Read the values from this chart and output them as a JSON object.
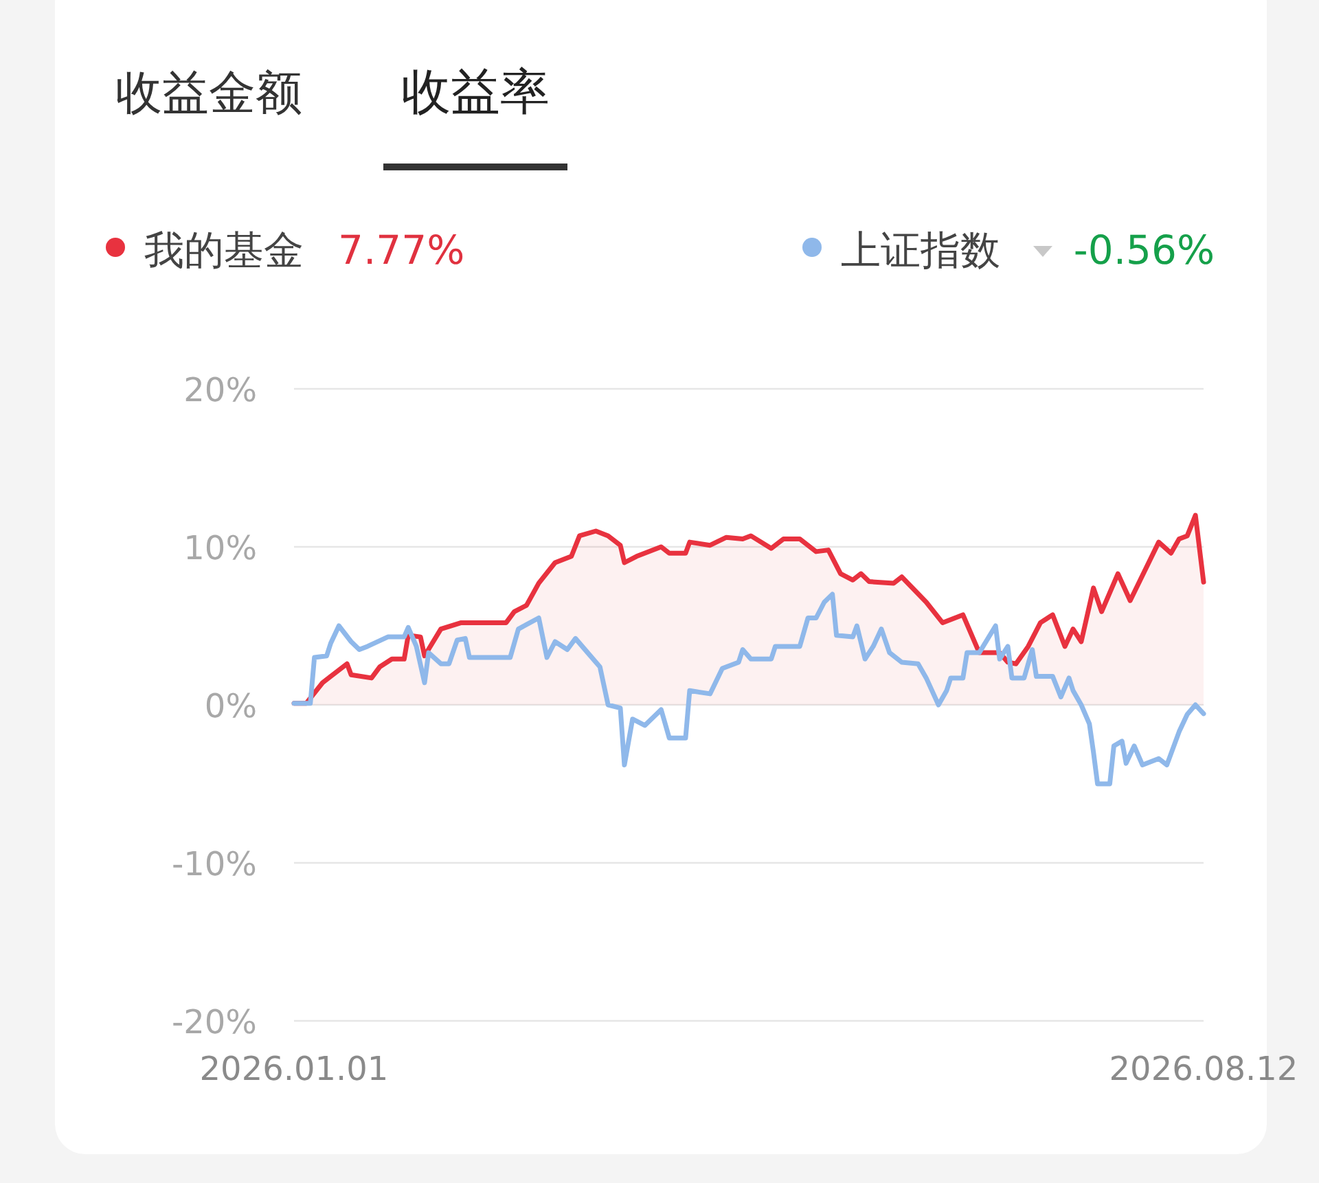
{
  "chart_data": {
    "type": "line",
    "annotations": [
      "收益金额",
      "收益率",
      "7.77%",
      "-0.56%"
    ],
    "xlim": [
      "2026-01-01",
      "2026-08-12"
    ],
    "xticks": [
      {
        "value": "2026-01-01",
        "label": "2026.01.01"
      },
      {
        "value": "2026-08-12",
        "label": "2026.08.12"
      }
    ],
    "ylim": [
      -20,
      20
    ],
    "yticks": [
      {
        "value": -20,
        "label": "-20%"
      },
      {
        "value": -10,
        "label": "-10%"
      },
      {
        "value": 0,
        "label": "0%"
      },
      {
        "value": 10,
        "label": "10%"
      },
      {
        "value": 20,
        "label": "20%"
      }
    ],
    "grid": "y",
    "legend": "top",
    "marker": "none",
    "line_style": "solid",
    "series": [
      {
        "name": "我的基金",
        "type": "area",
        "color": "#e8323f",
        "x": [
          "2026-01-01",
          "2026-01-04",
          "2026-01-08",
          "2026-01-10",
          "2026-01-14",
          "2026-01-15",
          "2026-01-20",
          "2026-01-22",
          "2026-01-25",
          "2026-01-28",
          "2026-01-29",
          "2026-02-01",
          "2026-02-02",
          "2026-02-06",
          "2026-02-11",
          "2026-02-22",
          "2026-02-24",
          "2026-02-27",
          "2026-03-02",
          "2026-03-06",
          "2026-03-10",
          "2026-03-12",
          "2026-03-16",
          "2026-03-19",
          "2026-03-22",
          "2026-03-23",
          "2026-03-26",
          "2026-04-01",
          "2026-04-03",
          "2026-04-07",
          "2026-04-08",
          "2026-04-13",
          "2026-04-17",
          "2026-04-21",
          "2026-04-23",
          "2026-04-28",
          "2026-05-01",
          "2026-05-05",
          "2026-05-09",
          "2026-05-12",
          "2026-05-15",
          "2026-05-18",
          "2026-05-20",
          "2026-05-22",
          "2026-05-28",
          "2026-05-30",
          "2026-06-05",
          "2026-06-09",
          "2026-06-14",
          "2026-06-18",
          "2026-06-23",
          "2026-06-25",
          "2026-06-27",
          "2026-06-30",
          "2026-07-03",
          "2026-07-06",
          "2026-07-09",
          "2026-07-11",
          "2026-07-13",
          "2026-07-16",
          "2026-07-18",
          "2026-07-22",
          "2026-07-25",
          "2026-08-01",
          "2026-08-04",
          "2026-08-06",
          "2026-08-08",
          "2026-08-10",
          "2026-08-12"
        ],
        "values": [
          0.1,
          0.1,
          1.4,
          1.8,
          2.6,
          1.9,
          1.7,
          2.4,
          2.9,
          2.9,
          4.4,
          4.3,
          3.1,
          4.8,
          5.2,
          5.2,
          5.9,
          6.3,
          7.7,
          9.0,
          9.4,
          10.7,
          11.0,
          10.7,
          10.1,
          9.0,
          9.4,
          10.0,
          9.6,
          9.6,
          10.3,
          10.1,
          10.6,
          10.5,
          10.7,
          9.9,
          10.5,
          10.5,
          9.7,
          9.8,
          8.3,
          7.9,
          8.3,
          7.8,
          7.7,
          8.1,
          6.5,
          5.2,
          5.7,
          3.3,
          3.3,
          2.7,
          2.6,
          3.7,
          5.2,
          5.7,
          3.7,
          4.8,
          4.0,
          7.4,
          5.9,
          8.3,
          6.6,
          10.3,
          9.6,
          10.5,
          10.7,
          12.0,
          7.77
        ]
      },
      {
        "name": "上证指数",
        "color": "#8fb8ea",
        "x": [
          "2026-01-01",
          "2026-01-05",
          "2026-01-06",
          "2026-01-09",
          "2026-01-10",
          "2026-01-12",
          "2026-01-15",
          "2026-01-17",
          "2026-01-19",
          "2026-01-24",
          "2026-01-28",
          "2026-01-29",
          "2026-01-31",
          "2026-02-02",
          "2026-02-03",
          "2026-02-06",
          "2026-02-08",
          "2026-02-10",
          "2026-02-12",
          "2026-02-13",
          "2026-02-23",
          "2026-02-25",
          "2026-03-02",
          "2026-03-04",
          "2026-03-06",
          "2026-03-09",
          "2026-03-11",
          "2026-03-14",
          "2026-03-17",
          "2026-03-19",
          "2026-03-22",
          "2026-03-23",
          "2026-03-25",
          "2026-03-28",
          "2026-04-01",
          "2026-04-03",
          "2026-04-07",
          "2026-04-08",
          "2026-04-13",
          "2026-04-16",
          "2026-04-20",
          "2026-04-21",
          "2026-04-23",
          "2026-04-28",
          "2026-04-29",
          "2026-05-05",
          "2026-05-07",
          "2026-05-09",
          "2026-05-11",
          "2026-05-13",
          "2026-05-14",
          "2026-05-18",
          "2026-05-19",
          "2026-05-21",
          "2026-05-23",
          "2026-05-25",
          "2026-05-27",
          "2026-05-30",
          "2026-06-03",
          "2026-06-05",
          "2026-06-08",
          "2026-06-10",
          "2026-06-11",
          "2026-06-14",
          "2026-06-15",
          "2026-06-18",
          "2026-06-22",
          "2026-06-23",
          "2026-06-25",
          "2026-06-26",
          "2026-06-29",
          "2026-07-01",
          "2026-07-02",
          "2026-07-06",
          "2026-07-08",
          "2026-07-10",
          "2026-07-11",
          "2026-07-13",
          "2026-07-15",
          "2026-07-16",
          "2026-07-17",
          "2026-07-20",
          "2026-07-21",
          "2026-07-23",
          "2026-07-24",
          "2026-07-26",
          "2026-07-28",
          "2026-08-01",
          "2026-08-03",
          "2026-08-06",
          "2026-08-08",
          "2026-08-10",
          "2026-08-12"
        ],
        "values": [
          0.1,
          0.1,
          3.0,
          3.1,
          3.9,
          5.0,
          4.0,
          3.5,
          3.7,
          4.3,
          4.3,
          4.9,
          3.7,
          1.4,
          3.3,
          2.6,
          2.6,
          4.1,
          4.2,
          3.0,
          3.0,
          4.8,
          5.5,
          3.0,
          4.0,
          3.5,
          4.2,
          3.3,
          2.4,
          0,
          -0.2,
          -3.8,
          -0.9,
          -1.3,
          -0.3,
          -2.1,
          -2.1,
          0.9,
          0.7,
          2.3,
          2.7,
          3.5,
          2.9,
          2.9,
          3.7,
          3.7,
          5.5,
          5.5,
          6.5,
          7.0,
          4.4,
          4.3,
          5.0,
          2.9,
          3.7,
          4.8,
          3.3,
          2.7,
          2.6,
          1.7,
          0,
          0.9,
          1.7,
          1.7,
          3.3,
          3.3,
          5.0,
          2.9,
          3.7,
          1.7,
          1.7,
          3.5,
          1.8,
          1.8,
          0.5,
          1.7,
          0.9,
          0,
          -1.2,
          -3.0,
          -5.0,
          -5.0,
          -2.6,
          -2.3,
          -3.7,
          -2.6,
          -3.8,
          -3.4,
          -3.8,
          -1.7,
          -0.6,
          0,
          -0.56
        ]
      }
    ]
  }
}
